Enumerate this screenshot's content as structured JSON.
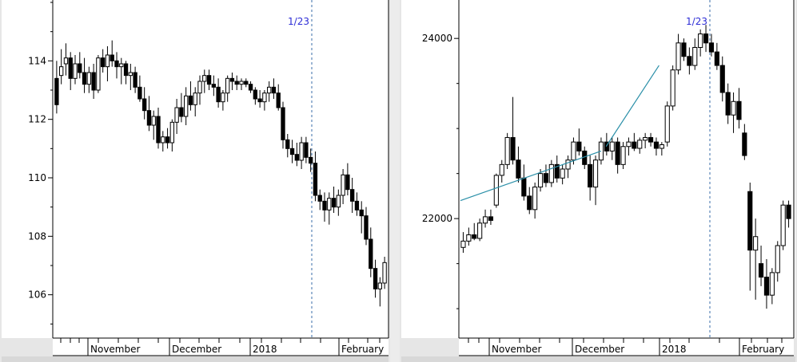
{
  "chart_data": [
    {
      "type": "candlestick",
      "ylim": [
        104.6,
        116.0
      ],
      "yticks": [
        106,
        108,
        110,
        112,
        114
      ],
      "yticklabels": [
        "106",
        "108",
        "110",
        "112",
        "114"
      ],
      "month_labels": [
        "November",
        "December",
        "2018",
        "February"
      ],
      "marker_label": "1/23",
      "trendlines": [],
      "candles": [
        [
          113.4,
          114.0,
          112.2,
          112.5
        ],
        [
          113.5,
          114.4,
          113.2,
          113.8
        ],
        [
          113.9,
          114.6,
          113.5,
          114.1
        ],
        [
          114.1,
          114.3,
          113.0,
          113.4
        ],
        [
          113.4,
          114.2,
          113.2,
          113.9
        ],
        [
          113.9,
          114.3,
          113.4,
          113.6
        ],
        [
          113.6,
          114.1,
          112.9,
          113.2
        ],
        [
          113.2,
          113.8,
          112.9,
          113.6
        ],
        [
          113.6,
          113.9,
          112.7,
          113.0
        ],
        [
          113.0,
          114.2,
          112.9,
          114.1
        ],
        [
          114.1,
          114.4,
          113.6,
          113.8
        ],
        [
          113.8,
          114.5,
          113.3,
          114.2
        ],
        [
          114.2,
          114.7,
          113.8,
          114.0
        ],
        [
          114.0,
          114.3,
          113.4,
          113.8
        ],
        [
          113.8,
          114.1,
          113.2,
          113.9
        ],
        [
          113.9,
          114.0,
          113.2,
          113.5
        ],
        [
          113.5,
          113.9,
          113.0,
          113.6
        ],
        [
          113.6,
          113.8,
          112.9,
          113.1
        ],
        [
          113.1,
          113.5,
          112.6,
          112.7
        ],
        [
          112.7,
          113.1,
          112.0,
          112.3
        ],
        [
          112.3,
          112.8,
          111.6,
          111.8
        ],
        [
          111.8,
          112.3,
          111.3,
          112.1
        ],
        [
          112.1,
          112.4,
          111.0,
          111.2
        ],
        [
          111.2,
          111.6,
          110.9,
          111.4
        ],
        [
          111.4,
          111.7,
          111.0,
          111.2
        ],
        [
          111.2,
          112.0,
          110.9,
          111.9
        ],
        [
          111.9,
          112.7,
          111.5,
          112.4
        ],
        [
          112.4,
          112.9,
          111.9,
          112.1
        ],
        [
          112.1,
          113.1,
          111.8,
          112.8
        ],
        [
          112.8,
          113.3,
          112.3,
          112.5
        ],
        [
          112.5,
          113.1,
          112.1,
          112.9
        ],
        [
          112.9,
          113.5,
          112.5,
          113.3
        ],
        [
          113.3,
          113.7,
          112.9,
          113.5
        ],
        [
          113.5,
          113.7,
          113.0,
          113.2
        ],
        [
          113.2,
          113.5,
          112.8,
          113.1
        ],
        [
          113.1,
          113.4,
          112.4,
          112.6
        ],
        [
          112.6,
          113.0,
          112.3,
          112.9
        ],
        [
          112.9,
          113.5,
          112.6,
          113.4
        ],
        [
          113.4,
          113.6,
          113.0,
          113.3
        ],
        [
          113.3,
          113.5,
          113.0,
          113.2
        ],
        [
          113.2,
          113.4,
          113.0,
          113.3
        ],
        [
          113.3,
          113.4,
          113.1,
          113.2
        ],
        [
          113.2,
          113.3,
          112.9,
          113.0
        ],
        [
          113.0,
          113.1,
          112.5,
          112.7
        ],
        [
          112.7,
          113.0,
          112.4,
          112.6
        ],
        [
          112.6,
          113.0,
          112.3,
          112.9
        ],
        [
          112.9,
          113.3,
          112.6,
          113.1
        ],
        [
          113.1,
          113.4,
          112.7,
          112.9
        ],
        [
          112.9,
          113.2,
          112.3,
          112.4
        ],
        [
          112.4,
          112.6,
          111.0,
          111.3
        ],
        [
          111.3,
          111.5,
          110.7,
          111.0
        ],
        [
          111.0,
          111.3,
          110.5,
          110.8
        ],
        [
          110.8,
          111.2,
          110.4,
          110.6
        ],
        [
          110.6,
          111.4,
          110.3,
          111.2
        ],
        [
          111.2,
          111.4,
          110.5,
          110.7
        ],
        [
          110.7,
          111.0,
          110.2,
          110.5
        ],
        [
          110.5,
          110.9,
          109.2,
          109.4
        ],
        [
          109.4,
          109.6,
          108.9,
          109.2
        ],
        [
          109.2,
          109.5,
          108.5,
          108.9
        ],
        [
          108.9,
          109.5,
          108.4,
          109.3
        ],
        [
          109.3,
          109.7,
          108.8,
          109.0
        ],
        [
          109.0,
          109.6,
          108.7,
          109.4
        ],
        [
          109.4,
          110.3,
          109.1,
          110.1
        ],
        [
          110.1,
          110.5,
          109.4,
          109.6
        ],
        [
          109.6,
          110.0,
          108.8,
          109.2
        ],
        [
          109.2,
          109.5,
          108.7,
          108.9
        ],
        [
          108.9,
          109.2,
          108.1,
          108.7
        ],
        [
          108.7,
          109.0,
          107.7,
          107.9
        ],
        [
          107.9,
          108.3,
          106.6,
          106.9
        ],
        [
          106.9,
          107.2,
          105.9,
          106.2
        ],
        [
          106.2,
          106.6,
          105.6,
          106.4
        ],
        [
          106.4,
          107.3,
          106.2,
          107.1
        ]
      ]
    },
    {
      "type": "candlestick",
      "ylim": [
        20700,
        24400
      ],
      "yticks": [
        22000,
        24000
      ],
      "yticklabels": [
        "22000",
        "24000"
      ],
      "month_labels": [
        "November",
        "December",
        "2018",
        "February"
      ],
      "marker_label": "1/23",
      "trendlines": [
        {
          "from": [
            0.0,
            22200
          ],
          "to": [
            0.425,
            22750
          ]
        },
        {
          "from": [
            0.44,
            22800
          ],
          "to": [
            0.6,
            23700
          ]
        }
      ],
      "candles": [
        [
          21680,
          21850,
          21620,
          21750
        ],
        [
          21750,
          21900,
          21700,
          21820
        ],
        [
          21820,
          21950,
          21760,
          21780
        ],
        [
          21780,
          22000,
          21750,
          21950
        ],
        [
          21950,
          22100,
          21900,
          22020
        ],
        [
          22020,
          22100,
          21930,
          21980
        ],
        [
          22150,
          22500,
          22120,
          22480
        ],
        [
          22480,
          22650,
          22400,
          22600
        ],
        [
          22600,
          22950,
          22550,
          22900
        ],
        [
          22900,
          23350,
          22600,
          22650
        ],
        [
          22650,
          22800,
          22400,
          22450
        ],
        [
          22450,
          22600,
          22200,
          22250
        ],
        [
          22250,
          22350,
          22050,
          22100
        ],
        [
          22100,
          22400,
          22000,
          22350
        ],
        [
          22350,
          22550,
          22300,
          22500
        ],
        [
          22500,
          22600,
          22350,
          22400
        ],
        [
          22400,
          22650,
          22350,
          22600
        ],
        [
          22600,
          22700,
          22400,
          22450
        ],
        [
          22450,
          22600,
          22380,
          22550
        ],
        [
          22550,
          22700,
          22450,
          22650
        ],
        [
          22650,
          22900,
          22600,
          22850
        ],
        [
          22850,
          23000,
          22700,
          22750
        ],
        [
          22750,
          22800,
          22550,
          22600
        ],
        [
          22600,
          22700,
          22200,
          22350
        ],
        [
          22350,
          22700,
          22150,
          22650
        ],
        [
          22650,
          22900,
          22600,
          22850
        ],
        [
          22850,
          22950,
          22700,
          22750
        ],
        [
          22750,
          22900,
          22650,
          22850
        ],
        [
          22850,
          22900,
          22500,
          22600
        ],
        [
          22600,
          22850,
          22550,
          22800
        ],
        [
          22800,
          22900,
          22700,
          22850
        ],
        [
          22850,
          22950,
          22750,
          22780
        ],
        [
          22780,
          22900,
          22720,
          22870
        ],
        [
          22870,
          22950,
          22780,
          22900
        ],
        [
          22900,
          22950,
          22800,
          22850
        ],
        [
          22850,
          22900,
          22700,
          22780
        ],
        [
          22780,
          22850,
          22700,
          22820
        ],
        [
          22850,
          23300,
          22800,
          23250
        ],
        [
          23250,
          23700,
          23200,
          23650
        ],
        [
          23650,
          24050,
          23600,
          23950
        ],
        [
          23950,
          24000,
          23750,
          23800
        ],
        [
          23800,
          23900,
          23600,
          23700
        ],
        [
          23700,
          24000,
          23650,
          23900
        ],
        [
          23900,
          24100,
          23800,
          24050
        ],
        [
          24050,
          24150,
          23850,
          23950
        ],
        [
          23950,
          24050,
          23800,
          23850
        ],
        [
          23850,
          23950,
          23650,
          23700
        ],
        [
          23700,
          23800,
          23300,
          23400
        ],
        [
          23400,
          23500,
          23050,
          23150
        ],
        [
          23150,
          23400,
          22950,
          23300
        ],
        [
          23300,
          23450,
          23000,
          23100
        ],
        [
          22950,
          23050,
          22650,
          22700
        ],
        [
          22300,
          22400,
          21200,
          21650
        ],
        [
          21650,
          22000,
          21100,
          21800
        ],
        [
          21500,
          21700,
          21250,
          21350
        ],
        [
          21350,
          21550,
          21000,
          21150
        ],
        [
          21150,
          21450,
          21050,
          21400
        ],
        [
          21400,
          21750,
          21300,
          21700
        ],
        [
          21700,
          22200,
          21650,
          22150
        ],
        [
          22150,
          22200,
          21900,
          22000
        ]
      ]
    }
  ]
}
